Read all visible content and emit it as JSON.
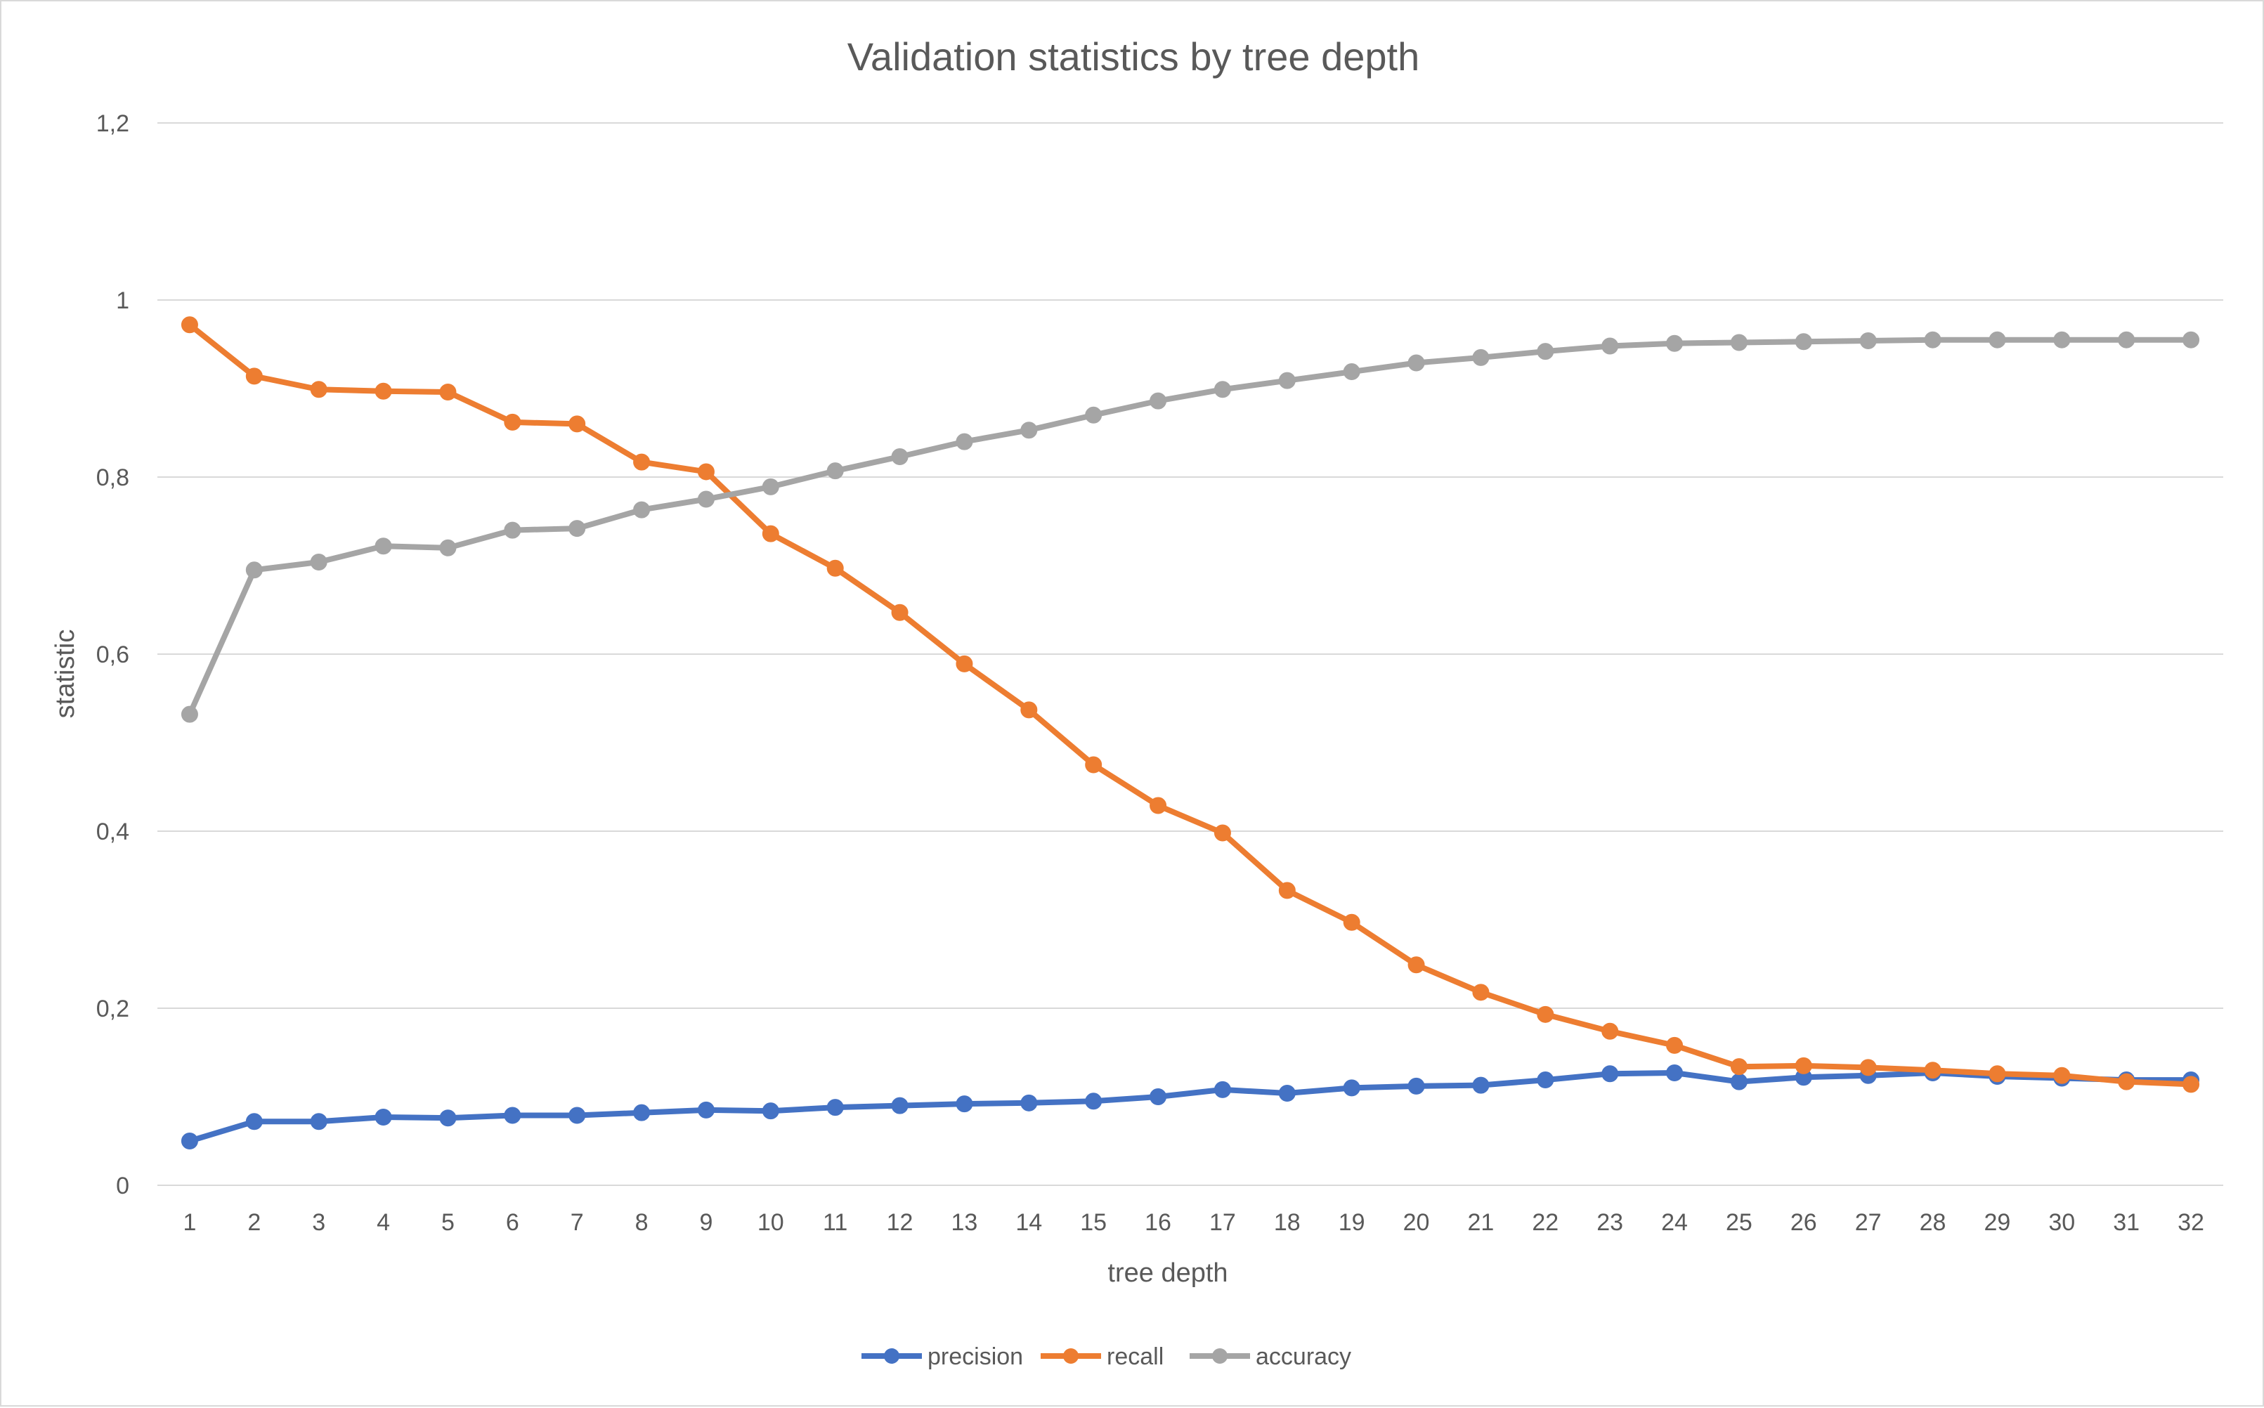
{
  "chart_data": {
    "type": "line",
    "title": "Validation statistics by tree depth",
    "xlabel": "tree depth",
    "ylabel": "statistic",
    "categories": [
      "1",
      "2",
      "3",
      "4",
      "5",
      "6",
      "7",
      "8",
      "9",
      "10",
      "11",
      "12",
      "13",
      "14",
      "15",
      "16",
      "17",
      "18",
      "19",
      "20",
      "21",
      "22",
      "23",
      "24",
      "25",
      "26",
      "27",
      "28",
      "29",
      "30",
      "31",
      "32"
    ],
    "ylim": [
      0,
      1.2
    ],
    "y_ticks": [
      0,
      0.2,
      0.4,
      0.6,
      0.8,
      1,
      1.2
    ],
    "y_tick_labels": [
      "0",
      "0,2",
      "0,4",
      "0,6",
      "0,8",
      "1",
      "1,2"
    ],
    "grid": "horizontal",
    "legend_position": "bottom",
    "series": [
      {
        "name": "precision",
        "color": "#4472C4",
        "values": [
          0.05,
          0.072,
          0.072,
          0.077,
          0.076,
          0.079,
          0.079,
          0.082,
          0.085,
          0.084,
          0.088,
          0.09,
          0.092,
          0.093,
          0.095,
          0.1,
          0.108,
          0.104,
          0.11,
          0.112,
          0.113,
          0.119,
          0.126,
          0.127,
          0.117,
          0.122,
          0.124,
          0.127,
          0.123,
          0.121,
          0.119,
          0.119
        ]
      },
      {
        "name": "recall",
        "color": "#ED7D31",
        "values": [
          0.972,
          0.914,
          0.899,
          0.897,
          0.896,
          0.862,
          0.86,
          0.817,
          0.806,
          0.736,
          0.697,
          0.647,
          0.589,
          0.537,
          0.475,
          0.429,
          0.398,
          0.333,
          0.297,
          0.249,
          0.218,
          0.193,
          0.174,
          0.158,
          0.134,
          0.135,
          0.133,
          0.13,
          0.126,
          0.124,
          0.117,
          0.114
        ]
      },
      {
        "name": "accuracy",
        "color": "#A5A5A5",
        "values": [
          0.532,
          0.695,
          0.704,
          0.722,
          0.72,
          0.74,
          0.742,
          0.763,
          0.775,
          0.789,
          0.807,
          0.823,
          0.84,
          0.853,
          0.87,
          0.886,
          0.899,
          0.909,
          0.919,
          0.929,
          0.935,
          0.942,
          0.948,
          0.951,
          0.952,
          0.953,
          0.954,
          0.955,
          0.955,
          0.955,
          0.955,
          0.955
        ]
      }
    ]
  }
}
